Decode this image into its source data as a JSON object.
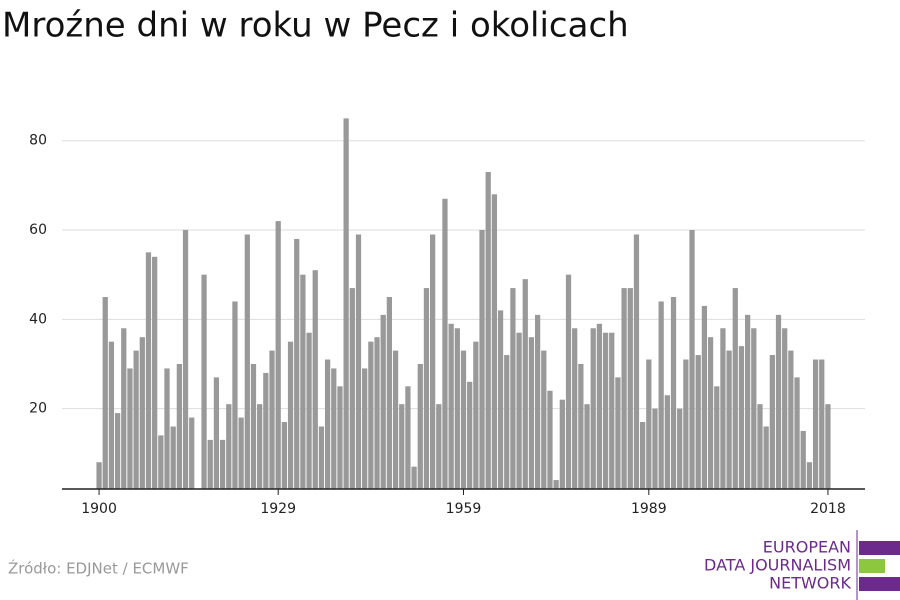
{
  "chart_data": {
    "type": "bar",
    "title": "Mroźne dni w roku w Pecz i okolicach",
    "source": "Źródło: EDJNet / ECMWF",
    "logo": [
      "EUROPEAN",
      "DATA JOURNALISM",
      "NETWORK"
    ],
    "color": "#999999",
    "grid": true,
    "x": [
      1900,
      1901,
      1902,
      1903,
      1904,
      1905,
      1906,
      1907,
      1908,
      1909,
      1910,
      1911,
      1912,
      1913,
      1914,
      1915,
      1916,
      1917,
      1918,
      1919,
      1920,
      1921,
      1922,
      1923,
      1924,
      1925,
      1926,
      1927,
      1928,
      1929,
      1930,
      1931,
      1932,
      1933,
      1934,
      1935,
      1936,
      1937,
      1938,
      1939,
      1940,
      1941,
      1942,
      1943,
      1944,
      1945,
      1946,
      1947,
      1948,
      1949,
      1950,
      1951,
      1952,
      1953,
      1954,
      1955,
      1956,
      1957,
      1958,
      1959,
      1960,
      1961,
      1962,
      1963,
      1964,
      1965,
      1966,
      1967,
      1968,
      1969,
      1970,
      1971,
      1972,
      1973,
      1974,
      1975,
      1976,
      1977,
      1978,
      1979,
      1980,
      1981,
      1982,
      1983,
      1984,
      1985,
      1986,
      1987,
      1988,
      1989,
      1990,
      1991,
      1992,
      1993,
      1994,
      1995,
      1996,
      1997,
      1998,
      1999,
      2000,
      2001,
      2002,
      2003,
      2004,
      2005,
      2006,
      2007,
      2008,
      2009,
      2010,
      2011,
      2012,
      2013,
      2014,
      2015,
      2016,
      2017,
      2018
    ],
    "values": [
      8,
      45,
      35,
      19,
      38,
      29,
      33,
      36,
      55,
      54,
      14,
      29,
      16,
      30,
      60,
      18,
      null,
      50,
      13,
      27,
      13,
      21,
      44,
      18,
      59,
      30,
      21,
      28,
      33,
      62,
      17,
      35,
      58,
      50,
      37,
      51,
      16,
      31,
      29,
      25,
      85,
      47,
      59,
      29,
      35,
      36,
      41,
      45,
      33,
      21,
      25,
      7,
      30,
      47,
      59,
      21,
      67,
      39,
      38,
      33,
      26,
      35,
      60,
      73,
      68,
      42,
      32,
      47,
      37,
      49,
      36,
      41,
      33,
      24,
      4,
      22,
      50,
      38,
      30,
      21,
      38,
      39,
      37,
      37,
      27,
      47,
      47,
      59,
      17,
      31,
      20,
      44,
      23,
      45,
      20,
      31,
      60,
      32,
      43,
      36,
      25,
      38,
      33,
      47,
      34,
      41,
      38,
      21,
      16,
      32,
      41,
      38,
      33,
      27,
      15,
      8,
      31,
      31,
      21
    ],
    "xlim": [
      1894,
      2024
    ],
    "xticks": [
      1900,
      1929,
      1959,
      1989,
      2018
    ],
    "ylim": [
      2,
      88
    ],
    "yticks": [
      20,
      40,
      60,
      80
    ]
  }
}
